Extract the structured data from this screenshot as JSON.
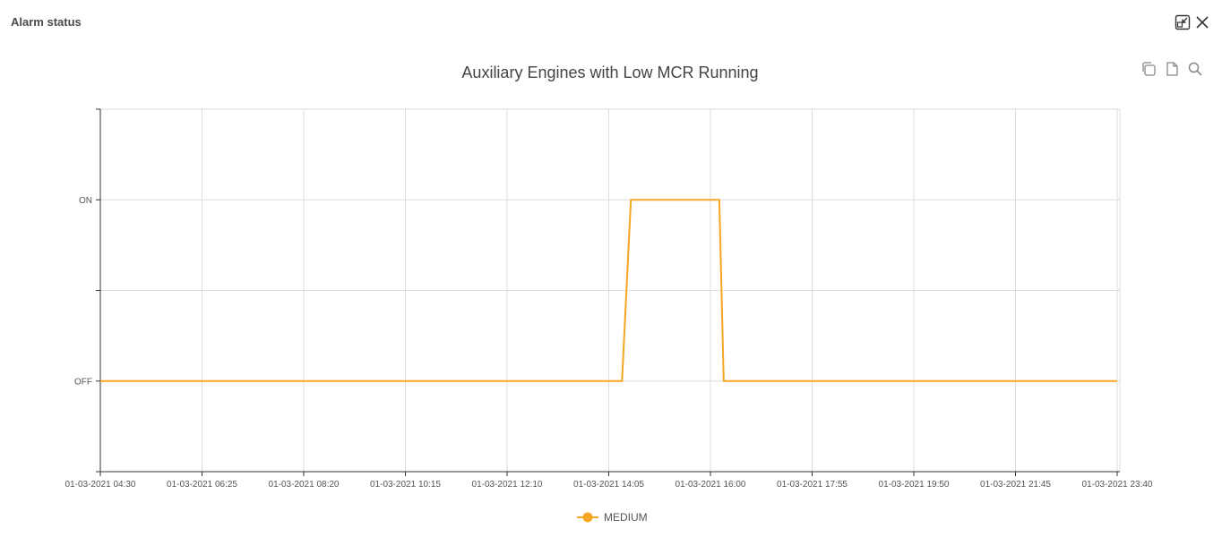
{
  "dialog": {
    "title": "Alarm status"
  },
  "window_controls": {
    "restore_icon": "restore-window-icon",
    "close_icon": "close-icon"
  },
  "toolbar": {
    "icons": [
      "copy-icon",
      "document-icon",
      "search-icon"
    ]
  },
  "chart_data": {
    "type": "line",
    "title": "Auxiliary Engines with Low MCR Running",
    "x_ticks": [
      "01-03-2021 04:30",
      "01-03-2021 06:25",
      "01-03-2021 08:20",
      "01-03-2021 10:15",
      "01-03-2021 12:10",
      "01-03-2021 14:05",
      "01-03-2021 16:00",
      "01-03-2021 17:55",
      "01-03-2021 19:50",
      "01-03-2021 21:45",
      "01-03-2021 23:40"
    ],
    "y_categories": [
      "OFF",
      "ON"
    ],
    "xlim": [
      "01-03-2021 04:30",
      "01-03-2021 23:40"
    ],
    "ylim": [
      -0.5,
      1.5
    ],
    "grid": true,
    "legend_position": "bottom",
    "series": [
      {
        "name": "MEDIUM",
        "color": "#f5a623",
        "points": [
          {
            "x": "01-03-2021 04:30",
            "y": 0
          },
          {
            "x": "01-03-2021 14:20",
            "y": 0
          },
          {
            "x": "01-03-2021 14:30",
            "y": 1
          },
          {
            "x": "01-03-2021 16:10",
            "y": 1
          },
          {
            "x": "01-03-2021 16:15",
            "y": 0
          },
          {
            "x": "01-03-2021 23:40",
            "y": 0
          }
        ]
      }
    ]
  }
}
